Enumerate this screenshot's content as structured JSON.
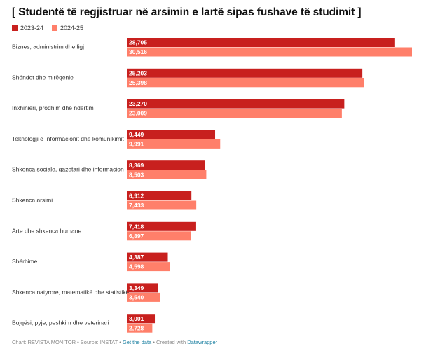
{
  "title": "[ Studentë të regjistruar në arsimin e lartë sipas fushave të studimit ]",
  "colors": {
    "series1": "#c8201e",
    "series2": "#ff7f6a"
  },
  "legend": [
    {
      "label": "2023-24",
      "color": "#c8201e"
    },
    {
      "label": "2024-25",
      "color": "#ff7f6a"
    }
  ],
  "footer": {
    "prefix": "Chart: REVISTA MONITOR • Source: INSTAT • ",
    "get_data": "Get the data",
    "created": " • Created with ",
    "tool": "Datawrapper"
  },
  "chart_data": {
    "type": "bar",
    "orientation": "horizontal",
    "categories": [
      "Biznes, administrim dhe ligj",
      "Shëndet dhe mirëqenie",
      "Inxhinieri, prodhim dhe ndërtim",
      "Teknologji e Informacionit dhe komunikimit",
      "Shkenca sociale, gazetari dhe informacion",
      "Shkenca arsimi",
      "Arte dhe shkenca humane",
      "Shërbime",
      "Shkenca natyrore, matematikë dhe statistikë",
      "Bujqësi, pyje, peshkim dhe veterinari"
    ],
    "series": [
      {
        "name": "2023-24",
        "values": [
          28705,
          25203,
          23270,
          9449,
          8369,
          6912,
          7418,
          4387,
          3349,
          3001
        ],
        "labels": [
          "28,705",
          "25,203",
          "23,270",
          "9,449",
          "8,369",
          "6,912",
          "7,418",
          "4,387",
          "3,349",
          "3,001"
        ]
      },
      {
        "name": "2024-25",
        "values": [
          30516,
          25398,
          23009,
          9991,
          8503,
          7433,
          6897,
          4598,
          3540,
          2728
        ],
        "labels": [
          "30,516",
          "25,398",
          "23,009",
          "9,991",
          "8,503",
          "7,433",
          "6,897",
          "4,598",
          "3,540",
          "2,728"
        ]
      }
    ],
    "xlim": [
      0,
      30516
    ]
  }
}
